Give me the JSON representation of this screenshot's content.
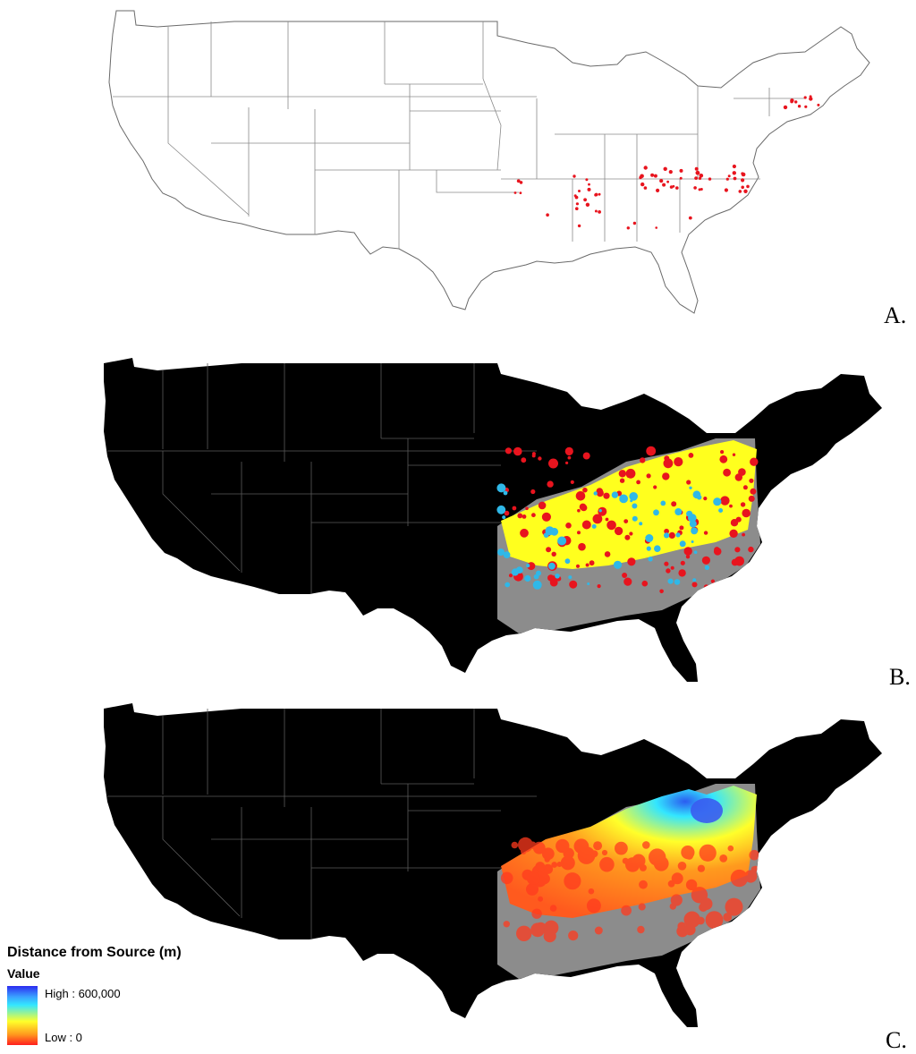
{
  "panels": [
    {
      "label": "A.",
      "style": "outline",
      "sources_color": "#e8141e"
    },
    {
      "label": "B.",
      "style": "classified",
      "class_colors": [
        "#ffff1e",
        "#e8141e",
        "#2fb8e8",
        "#8c8c8c"
      ]
    },
    {
      "label": "C.",
      "style": "continuous",
      "ramp_colors": [
        "#2b2bf0",
        "#33e6ff",
        "#ffff2a",
        "#ff9a1e",
        "#ff1e1e"
      ]
    }
  ],
  "legend": {
    "title": "Distance from Source (m)",
    "subtitle": "Value",
    "high_label": "High : 600,000",
    "low_label": "Low : 0"
  },
  "colors": {
    "land_dark": "#000000",
    "no_data": "#8c8c8c",
    "boundary_light": "#ffffff",
    "boundary_dark": "#5a5a5a"
  }
}
